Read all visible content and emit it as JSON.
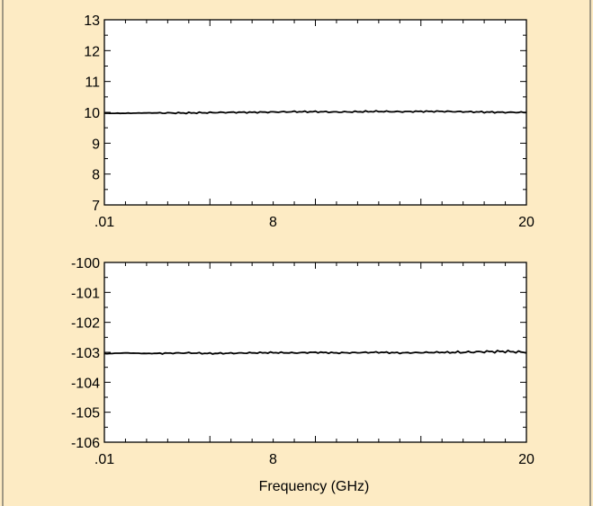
{
  "colors": {
    "background": "#fdebc4",
    "border": "#444444",
    "plot_area": "#ffffff",
    "line": "#000000"
  },
  "chart_data": [
    {
      "type": "line",
      "title": "",
      "xlabel": "",
      "ylabel": "",
      "xlim": [
        0.01,
        20
      ],
      "ylim": [
        7,
        13
      ],
      "x_tick_labels": [
        ".01",
        "8",
        "20"
      ],
      "x_tick_values": [
        0.01,
        8,
        20
      ],
      "y_ticks": [
        7,
        8,
        9,
        10,
        11,
        12,
        13
      ],
      "grid": false,
      "series": [
        {
          "x": [
            0.01,
            1,
            2,
            3,
            4,
            5,
            6,
            7,
            8,
            9,
            10,
            11,
            12,
            13,
            14,
            15,
            16,
            17,
            18,
            19,
            20
          ],
          "y": [
            9.97,
            9.97,
            9.98,
            9.98,
            9.98,
            9.99,
            10.0,
            10.0,
            10.01,
            10.02,
            10.02,
            10.01,
            10.02,
            10.03,
            10.02,
            10.03,
            10.03,
            10.02,
            10.01,
            10.0,
            10.0
          ]
        }
      ]
    },
    {
      "type": "line",
      "title": "",
      "xlabel": "Frequency (GHz)",
      "ylabel": "",
      "xlim": [
        0.01,
        20
      ],
      "ylim": [
        -106,
        -100
      ],
      "x_tick_labels": [
        ".01",
        "8",
        "20"
      ],
      "x_tick_values": [
        0.01,
        8,
        20
      ],
      "y_ticks": [
        -100,
        -101,
        -102,
        -103,
        -104,
        -105,
        -106
      ],
      "grid": false,
      "series": [
        {
          "x": [
            0.01,
            1,
            2,
            3,
            4,
            5,
            6,
            7,
            8,
            9,
            10,
            11,
            12,
            13,
            14,
            15,
            16,
            17,
            18,
            19,
            20
          ],
          "y": [
            -103.05,
            -103.02,
            -103.04,
            -103.03,
            -103.02,
            -103.04,
            -103.03,
            -103.02,
            -103.01,
            -103.02,
            -103.0,
            -103.02,
            -103.01,
            -103.0,
            -103.02,
            -103.01,
            -103.0,
            -103.0,
            -102.98,
            -102.97,
            -103.0
          ]
        }
      ]
    }
  ]
}
